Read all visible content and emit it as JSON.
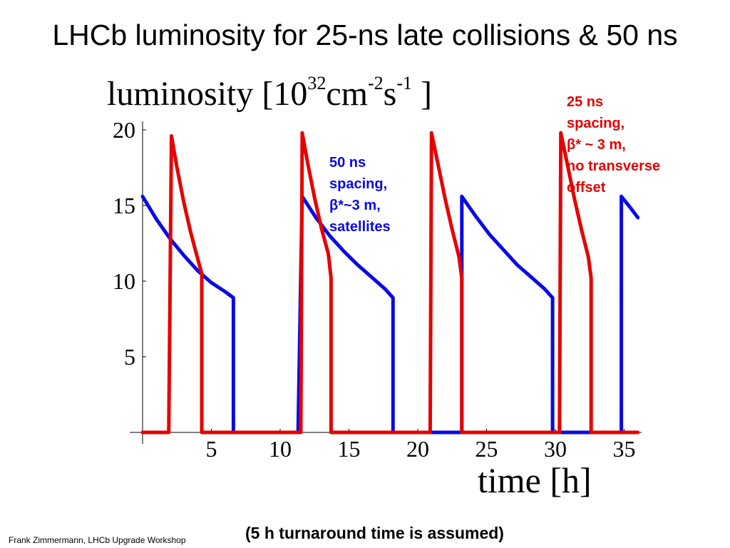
{
  "slide": {
    "title": "LHCb luminosity for 25-ns late collisions & 50 ns",
    "footer_left": "Frank Zimmermann, LHCb Upgrade Workshop",
    "footer_center": "(5 h turnaround time is assumed)"
  },
  "chart_data": {
    "type": "line",
    "ylabel": {
      "base": "luminosity [10",
      "exp1": "32",
      "unit1": "cm",
      "exp2": "-2",
      "unit2": "s",
      "exp3": "-1",
      "close": "]"
    },
    "xlabel": "time [h]",
    "xlim": [
      0,
      37
    ],
    "ylim": [
      0,
      20.5
    ],
    "xticks": [
      5,
      10,
      15,
      20,
      25,
      30,
      35
    ],
    "yticks": [
      5,
      10,
      15,
      20
    ],
    "grid": false,
    "series": [
      {
        "color": "#0a0ae6",
        "points": [
          [
            0,
            15.6
          ],
          [
            1,
            14.1
          ],
          [
            2,
            12.8
          ],
          [
            3,
            11.7
          ],
          [
            4,
            10.7
          ],
          [
            5,
            9.9
          ],
          [
            6,
            9.3
          ],
          [
            6.6,
            8.9
          ],
          [
            6.6,
            0
          ],
          [
            11.3,
            0
          ],
          [
            11.6,
            15.6
          ],
          [
            12.6,
            14.2
          ],
          [
            13.6,
            13.0
          ],
          [
            14.6,
            12.0
          ],
          [
            15.6,
            11.1
          ],
          [
            16.6,
            10.3
          ],
          [
            17.6,
            9.5
          ],
          [
            18.2,
            8.9
          ],
          [
            18.2,
            0
          ],
          [
            23.2,
            0
          ],
          [
            23.2,
            15.6
          ],
          [
            24.2,
            14.3
          ],
          [
            25.2,
            13.1
          ],
          [
            26.2,
            12.1
          ],
          [
            27.2,
            11.1
          ],
          [
            28.2,
            10.3
          ],
          [
            29.2,
            9.5
          ],
          [
            29.8,
            8.9
          ],
          [
            29.8,
            0
          ],
          [
            34.8,
            0
          ],
          [
            34.8,
            15.6
          ],
          [
            35.5,
            14.8
          ],
          [
            36,
            14.2
          ]
        ]
      },
      {
        "color": "#e60000",
        "points": [
          [
            0,
            0
          ],
          [
            1.9,
            0
          ],
          [
            2.1,
            19.6
          ],
          [
            2.5,
            17.5
          ],
          [
            3,
            15.2
          ],
          [
            3.5,
            13.2
          ],
          [
            4,
            11.5
          ],
          [
            4.3,
            10.5
          ],
          [
            4.3,
            0
          ],
          [
            11.5,
            0
          ],
          [
            11.6,
            19.8
          ],
          [
            12,
            17.8
          ],
          [
            12.5,
            15.5
          ],
          [
            13,
            13.5
          ],
          [
            13.5,
            11.8
          ],
          [
            13.7,
            10.2
          ],
          [
            13.7,
            0
          ],
          [
            20.9,
            0
          ],
          [
            21,
            19.8
          ],
          [
            21.5,
            17.6
          ],
          [
            22,
            15.4
          ],
          [
            22.5,
            13.4
          ],
          [
            23,
            11.6
          ],
          [
            23.2,
            10.2
          ],
          [
            23.2,
            0
          ],
          [
            30.3,
            0
          ],
          [
            30.4,
            19.8
          ],
          [
            30.9,
            17.6
          ],
          [
            31.4,
            15.4
          ],
          [
            31.9,
            13.4
          ],
          [
            32.4,
            11.6
          ],
          [
            32.6,
            10.2
          ],
          [
            32.6,
            0
          ],
          [
            36,
            0
          ]
        ]
      }
    ],
    "annotations": [
      {
        "color": "#0a0ae6",
        "lines": [
          "50 ns",
          "spacing,",
          "β*~3 m,",
          "satellites"
        ]
      },
      {
        "color": "#e60000",
        "lines": [
          "25 ns",
          "spacing,",
          "β* ~ 3 m,",
          "no transverse",
          "offset"
        ]
      }
    ]
  }
}
